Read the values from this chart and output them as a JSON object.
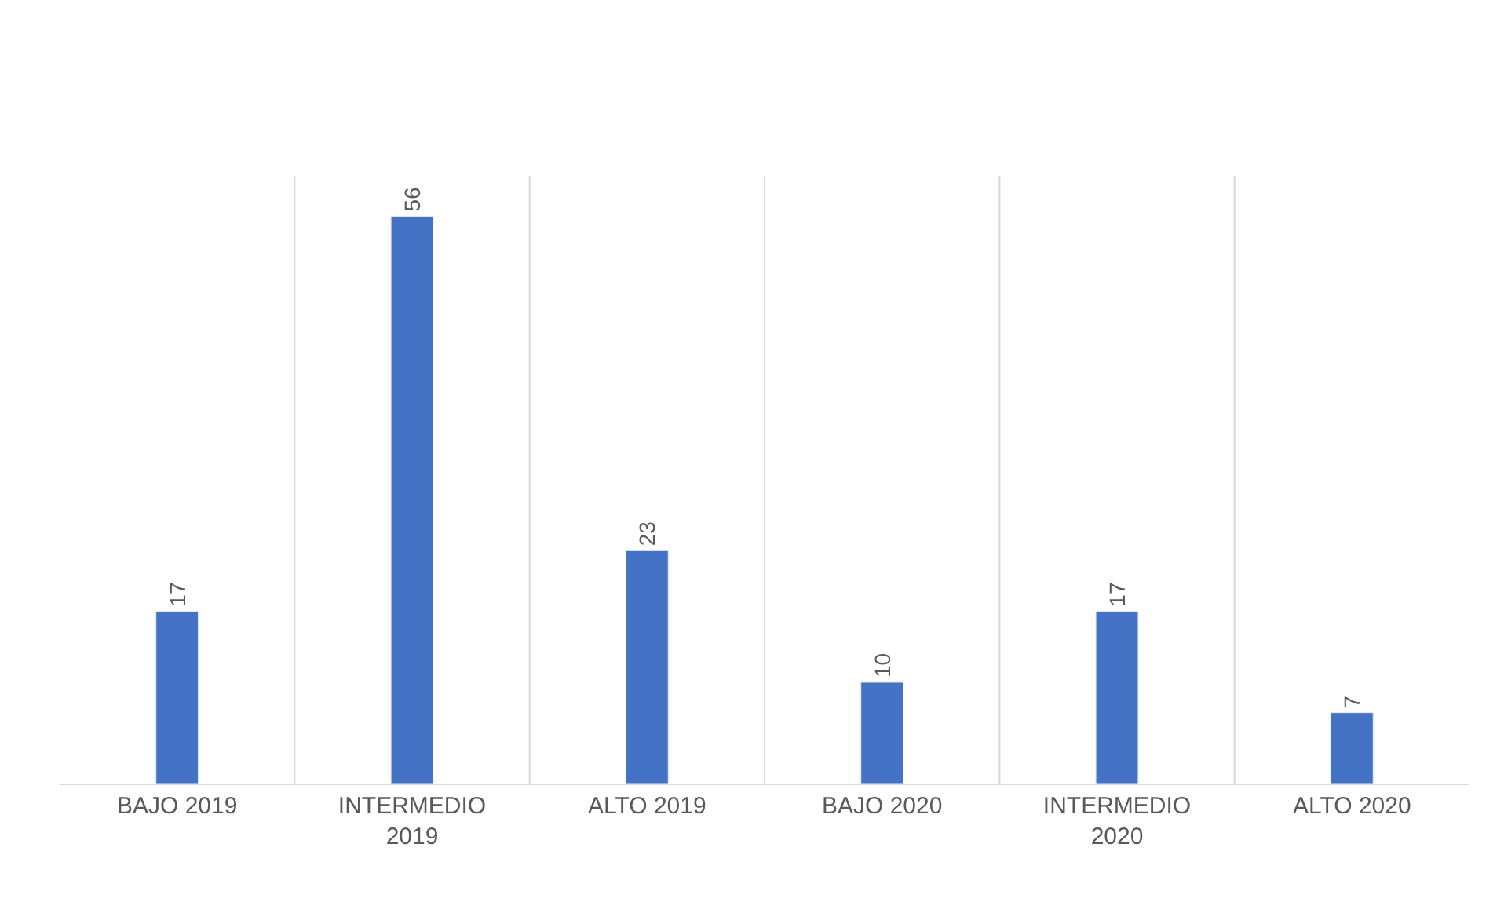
{
  "chart_data": {
    "type": "bar",
    "categories": [
      "BAJO 2019",
      "INTERMEDIO 2019",
      "ALTO 2019",
      "BAJO 2020",
      "INTERMEDIO 2020",
      "ALTO 2020"
    ],
    "values": [
      17,
      56,
      23,
      10,
      17,
      7
    ],
    "color": "#4472c4",
    "ylim": [
      0,
      60
    ],
    "data_labels": true,
    "grid": "x",
    "legend": false
  }
}
